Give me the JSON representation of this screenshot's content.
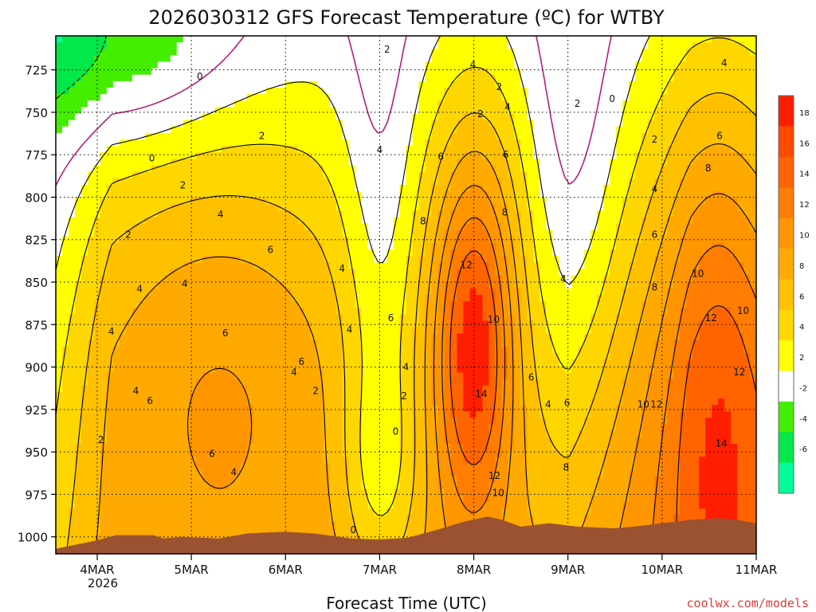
{
  "chart_data": {
    "type": "heatmap",
    "title": "2026030312 GFS Forecast Temperature (ºC) for WTBY",
    "xlabel": "Forecast Time (UTC)",
    "ylabel": "",
    "x_ticks": [
      "4MAR",
      "5MAR",
      "6MAR",
      "7MAR",
      "8MAR",
      "9MAR",
      "10MAR",
      "11MAR"
    ],
    "x_sublabel": "2026",
    "x_range_days": [
      3.56,
      11.0
    ],
    "y_ticks": [
      725,
      750,
      775,
      800,
      825,
      850,
      875,
      900,
      925,
      950,
      975,
      1000
    ],
    "y_range_hpa": [
      705,
      1010
    ],
    "colorbar": {
      "levels": [
        18,
        16,
        14,
        12,
        10,
        8,
        6,
        4,
        2,
        -2,
        -4,
        -6
      ],
      "colors": [
        "#ff1e00",
        "#ff4a00",
        "#ff6400",
        "#ff7d00",
        "#ff9600",
        "#ffaa00",
        "#ffc000",
        "#ffd700",
        "#ffff00",
        "#ffffff",
        "#44ee00",
        "#00e84a",
        "#00ff99"
      ]
    },
    "colors": {
      "terrain": "#9a5230",
      "zero_line": "#b0207a",
      "contour": "#000000",
      "credit": "#e23a3a"
    },
    "fill_bands": [
      {
        "color": "#ffffff",
        "temps": [
          -2,
          2
        ]
      },
      {
        "color": "#ffff00",
        "temps": [
          2,
          4
        ]
      },
      {
        "color": "#ffd700",
        "temps": [
          4,
          6
        ]
      },
      {
        "color": "#ffc000",
        "temps": [
          6,
          8
        ]
      },
      {
        "color": "#ffaa00",
        "temps": [
          8,
          10
        ]
      },
      {
        "color": "#ff9600",
        "temps": [
          10,
          12
        ]
      },
      {
        "color": "#ff7d00",
        "temps": [
          12,
          14
        ]
      },
      {
        "color": "#ff6400",
        "temps": [
          14,
          16
        ]
      },
      {
        "color": "#ff1e00",
        "temps": [
          16,
          18
        ]
      },
      {
        "color": "#44ee00",
        "temps": [
          -4,
          -2
        ]
      },
      {
        "color": "#00e84a",
        "temps": [
          -6,
          -4
        ]
      }
    ],
    "contour_labels": [
      {
        "text": "0",
        "day": 5.09,
        "hpa": 729
      },
      {
        "text": "2",
        "day": 7.08,
        "hpa": 713
      },
      {
        "text": "4",
        "day": 7.99,
        "hpa": 722
      },
      {
        "text": "2",
        "day": 8.27,
        "hpa": 735
      },
      {
        "text": "4",
        "day": 8.36,
        "hpa": 747
      },
      {
        "text": "2",
        "day": 8.07,
        "hpa": 751
      },
      {
        "text": "2",
        "day": 9.1,
        "hpa": 745
      },
      {
        "text": "0",
        "day": 9.47,
        "hpa": 742
      },
      {
        "text": "4",
        "day": 10.66,
        "hpa": 721
      },
      {
        "text": "2",
        "day": 9.92,
        "hpa": 766
      },
      {
        "text": "6",
        "day": 10.61,
        "hpa": 764
      },
      {
        "text": "8",
        "day": 10.49,
        "hpa": 783
      },
      {
        "text": "4",
        "day": 9.92,
        "hpa": 795
      },
      {
        "text": "6",
        "day": 9.92,
        "hpa": 822
      },
      {
        "text": "10",
        "day": 10.38,
        "hpa": 845
      },
      {
        "text": "8",
        "day": 9.92,
        "hpa": 853
      },
      {
        "text": "12",
        "day": 10.52,
        "hpa": 871
      },
      {
        "text": "10",
        "day": 10.86,
        "hpa": 867
      },
      {
        "text": "12",
        "day": 10.82,
        "hpa": 903
      },
      {
        "text": "10",
        "day": 9.8,
        "hpa": 922
      },
      {
        "text": "12",
        "day": 9.94,
        "hpa": 922
      },
      {
        "text": "14",
        "day": 10.63,
        "hpa": 945
      },
      {
        "text": "0",
        "day": 4.58,
        "hpa": 777
      },
      {
        "text": "2",
        "day": 4.91,
        "hpa": 793
      },
      {
        "text": "2",
        "day": 5.75,
        "hpa": 764
      },
      {
        "text": "4",
        "day": 5.31,
        "hpa": 810
      },
      {
        "text": "4",
        "day": 7.0,
        "hpa": 772
      },
      {
        "text": "6",
        "day": 7.65,
        "hpa": 776
      },
      {
        "text": "6",
        "day": 8.34,
        "hpa": 775
      },
      {
        "text": "8",
        "day": 8.33,
        "hpa": 809
      },
      {
        "text": "8",
        "day": 7.46,
        "hpa": 814
      },
      {
        "text": "2",
        "day": 4.33,
        "hpa": 822
      },
      {
        "text": "4",
        "day": 4.45,
        "hpa": 854
      },
      {
        "text": "4",
        "day": 4.93,
        "hpa": 851
      },
      {
        "text": "6",
        "day": 5.84,
        "hpa": 831
      },
      {
        "text": "4",
        "day": 6.6,
        "hpa": 842
      },
      {
        "text": "12",
        "day": 7.92,
        "hpa": 840
      },
      {
        "text": "10",
        "day": 8.21,
        "hpa": 872
      },
      {
        "text": "6",
        "day": 7.12,
        "hpa": 871
      },
      {
        "text": "4",
        "day": 6.68,
        "hpa": 878
      },
      {
        "text": "4",
        "day": 4.15,
        "hpa": 879
      },
      {
        "text": "6",
        "day": 5.36,
        "hpa": 880
      },
      {
        "text": "6",
        "day": 6.17,
        "hpa": 897
      },
      {
        "text": "4",
        "day": 6.09,
        "hpa": 903
      },
      {
        "text": "4",
        "day": 7.28,
        "hpa": 900
      },
      {
        "text": "4",
        "day": 8.95,
        "hpa": 848
      },
      {
        "text": "6",
        "day": 8.61,
        "hpa": 906
      },
      {
        "text": "2",
        "day": 6.32,
        "hpa": 914
      },
      {
        "text": "4",
        "day": 4.41,
        "hpa": 914
      },
      {
        "text": "6",
        "day": 4.56,
        "hpa": 920
      },
      {
        "text": "2",
        "day": 7.26,
        "hpa": 917
      },
      {
        "text": "14",
        "day": 8.08,
        "hpa": 916
      },
      {
        "text": "4",
        "day": 8.79,
        "hpa": 922
      },
      {
        "text": "6",
        "day": 8.99,
        "hpa": 921
      },
      {
        "text": "0",
        "day": 7.17,
        "hpa": 938
      },
      {
        "text": "2",
        "day": 4.04,
        "hpa": 943
      },
      {
        "text": "6",
        "day": 5.22,
        "hpa": 951
      },
      {
        "text": "4",
        "day": 5.45,
        "hpa": 962
      },
      {
        "text": "8",
        "day": 8.98,
        "hpa": 959
      },
      {
        "text": "12",
        "day": 8.22,
        "hpa": 964
      },
      {
        "text": "10",
        "day": 8.26,
        "hpa": 974
      },
      {
        "text": "0",
        "day": 6.72,
        "hpa": 996
      }
    ]
  },
  "footer": {
    "credit": "coolwx.com/models"
  }
}
